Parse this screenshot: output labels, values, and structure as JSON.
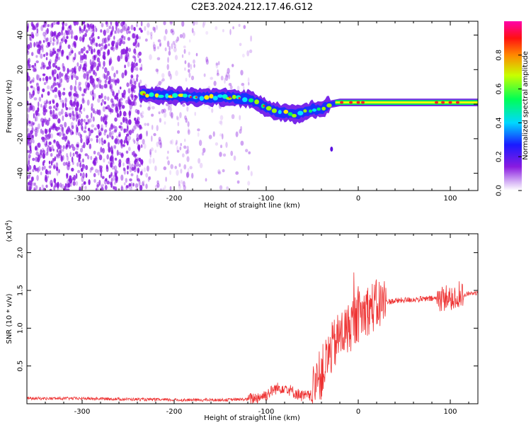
{
  "title": "C2E3.2024.212.17.46.G12",
  "colors": {
    "snr_line": "#ee3333",
    "spectrogram_noise": "#8a1be0",
    "axis": "#000000"
  },
  "chart_data": [
    {
      "type": "heatmap",
      "xlabel": "Height of straight line (km)",
      "ylabel": "Frequency (Hz)",
      "xlim": [
        -360,
        130
      ],
      "ylim": [
        -50,
        48
      ],
      "xticks": [
        -300,
        -200,
        -100,
        0,
        100
      ],
      "xtick_labels": [
        "-300",
        "-200",
        "-100",
        "0",
        "100"
      ],
      "yticks": [
        -40,
        -20,
        0,
        20,
        40
      ],
      "ytick_labels": [
        "-40",
        "-20",
        "0",
        "20",
        "40"
      ],
      "colorbar": {
        "label": "Normalized spectral amplitude",
        "range": [
          0,
          1
        ],
        "ticks": [
          0.0,
          0.2,
          0.4,
          0.6,
          0.8
        ],
        "tick_labels": [
          "0.0",
          "0.2",
          "0.4",
          "0.6",
          "0.8"
        ],
        "colormap": "rainbow (white-violet-blue-cyan-green-yellow-red-magenta)"
      },
      "noise_region_x": [
        -360,
        -120
      ],
      "signal_ridge": {
        "x": [
          -238,
          -220,
          -200,
          -180,
          -160,
          -140,
          -120,
          -110,
          -100,
          -90,
          -80,
          -70,
          -60,
          -50,
          -40,
          -30,
          -20,
          -10,
          0,
          20,
          60,
          100,
          130
        ],
        "y": [
          6,
          5,
          5,
          4,
          4,
          4,
          3,
          1,
          -2,
          -4,
          -5,
          -6,
          -5,
          -3,
          -3,
          0,
          1,
          1,
          1,
          1,
          1,
          1,
          1
        ]
      },
      "isolated_blob": {
        "x": -29,
        "y": -26
      }
    },
    {
      "type": "line",
      "xlabel": "Height of straight line (km)",
      "ylabel": "SNR (10 * v/v)",
      "y_multiplier": "(x10",
      "y_multiplier_exp": "4",
      "y_multiplier_close": ")",
      "xlim": [
        -360,
        130
      ],
      "ylim": [
        0.0,
        2.25
      ],
      "xticks": [
        -300,
        -200,
        -100,
        0,
        100
      ],
      "xtick_labels": [
        "-300",
        "-200",
        "-100",
        "0",
        "100"
      ],
      "yticks": [
        0.5,
        1.0,
        1.5,
        2.0
      ],
      "ytick_labels": [
        "0.5",
        "1.0",
        "1.5",
        "2.0"
      ],
      "grid": false,
      "series": [
        {
          "x": [
            -360,
            -300,
            -250,
            -200,
            -150,
            -120,
            -110,
            -100,
            -90,
            -80,
            -70,
            -60,
            -50,
            -45,
            -40,
            -35,
            -30,
            -25,
            -20,
            -15,
            -10,
            -5,
            0,
            10,
            20,
            30,
            40,
            60,
            80,
            90,
            95,
            100,
            105,
            110,
            115,
            120,
            130
          ],
          "y": [
            0.07,
            0.07,
            0.06,
            0.05,
            0.05,
            0.06,
            0.08,
            0.12,
            0.2,
            0.22,
            0.15,
            0.1,
            0.1,
            0.3,
            0.4,
            0.55,
            0.7,
            0.8,
            0.9,
            0.95,
            1.0,
            1.1,
            1.15,
            1.25,
            1.3,
            1.35,
            1.36,
            1.38,
            1.39,
            1.4,
            1.4,
            1.42,
            1.38,
            1.45,
            1.43,
            1.46,
            1.47
          ]
        }
      ]
    }
  ]
}
